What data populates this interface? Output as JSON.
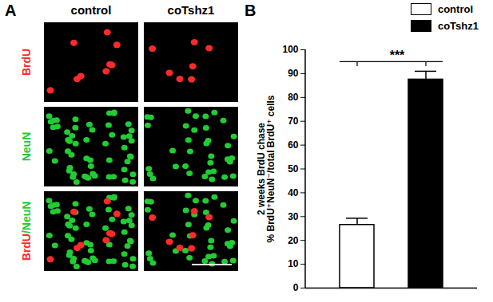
{
  "chart_data": {
    "type": "bar",
    "panel_label": "B",
    "categories": [
      "control",
      "coTshz1"
    ],
    "values": [
      26.5,
      87.5
    ],
    "errors": [
      2.8,
      3.5
    ],
    "colors": [
      "#ffffff",
      "#000000"
    ],
    "ylim": [
      0,
      100
    ],
    "yticks": [
      0,
      10,
      20,
      30,
      40,
      50,
      60,
      70,
      80,
      90,
      100
    ],
    "y_label": [
      "2 weeks BrdU chase",
      "% BrdU⁺NeuN⁻/total BrdU⁺ cells"
    ],
    "annotations": [
      {
        "text": "***",
        "between": [
          "control",
          "coTshz1"
        ]
      }
    ],
    "legend": "top-right",
    "tick_labels": "y"
  },
  "panel_a": {
    "label": "A",
    "columns": [
      "control",
      "coTshz1"
    ],
    "rows": [
      {
        "label": "BrdU",
        "color": "#ff2a2a"
      },
      {
        "label": "NeuN",
        "color": "#22cc33"
      },
      {
        "label": "BrdU/NeuN"
      }
    ]
  }
}
